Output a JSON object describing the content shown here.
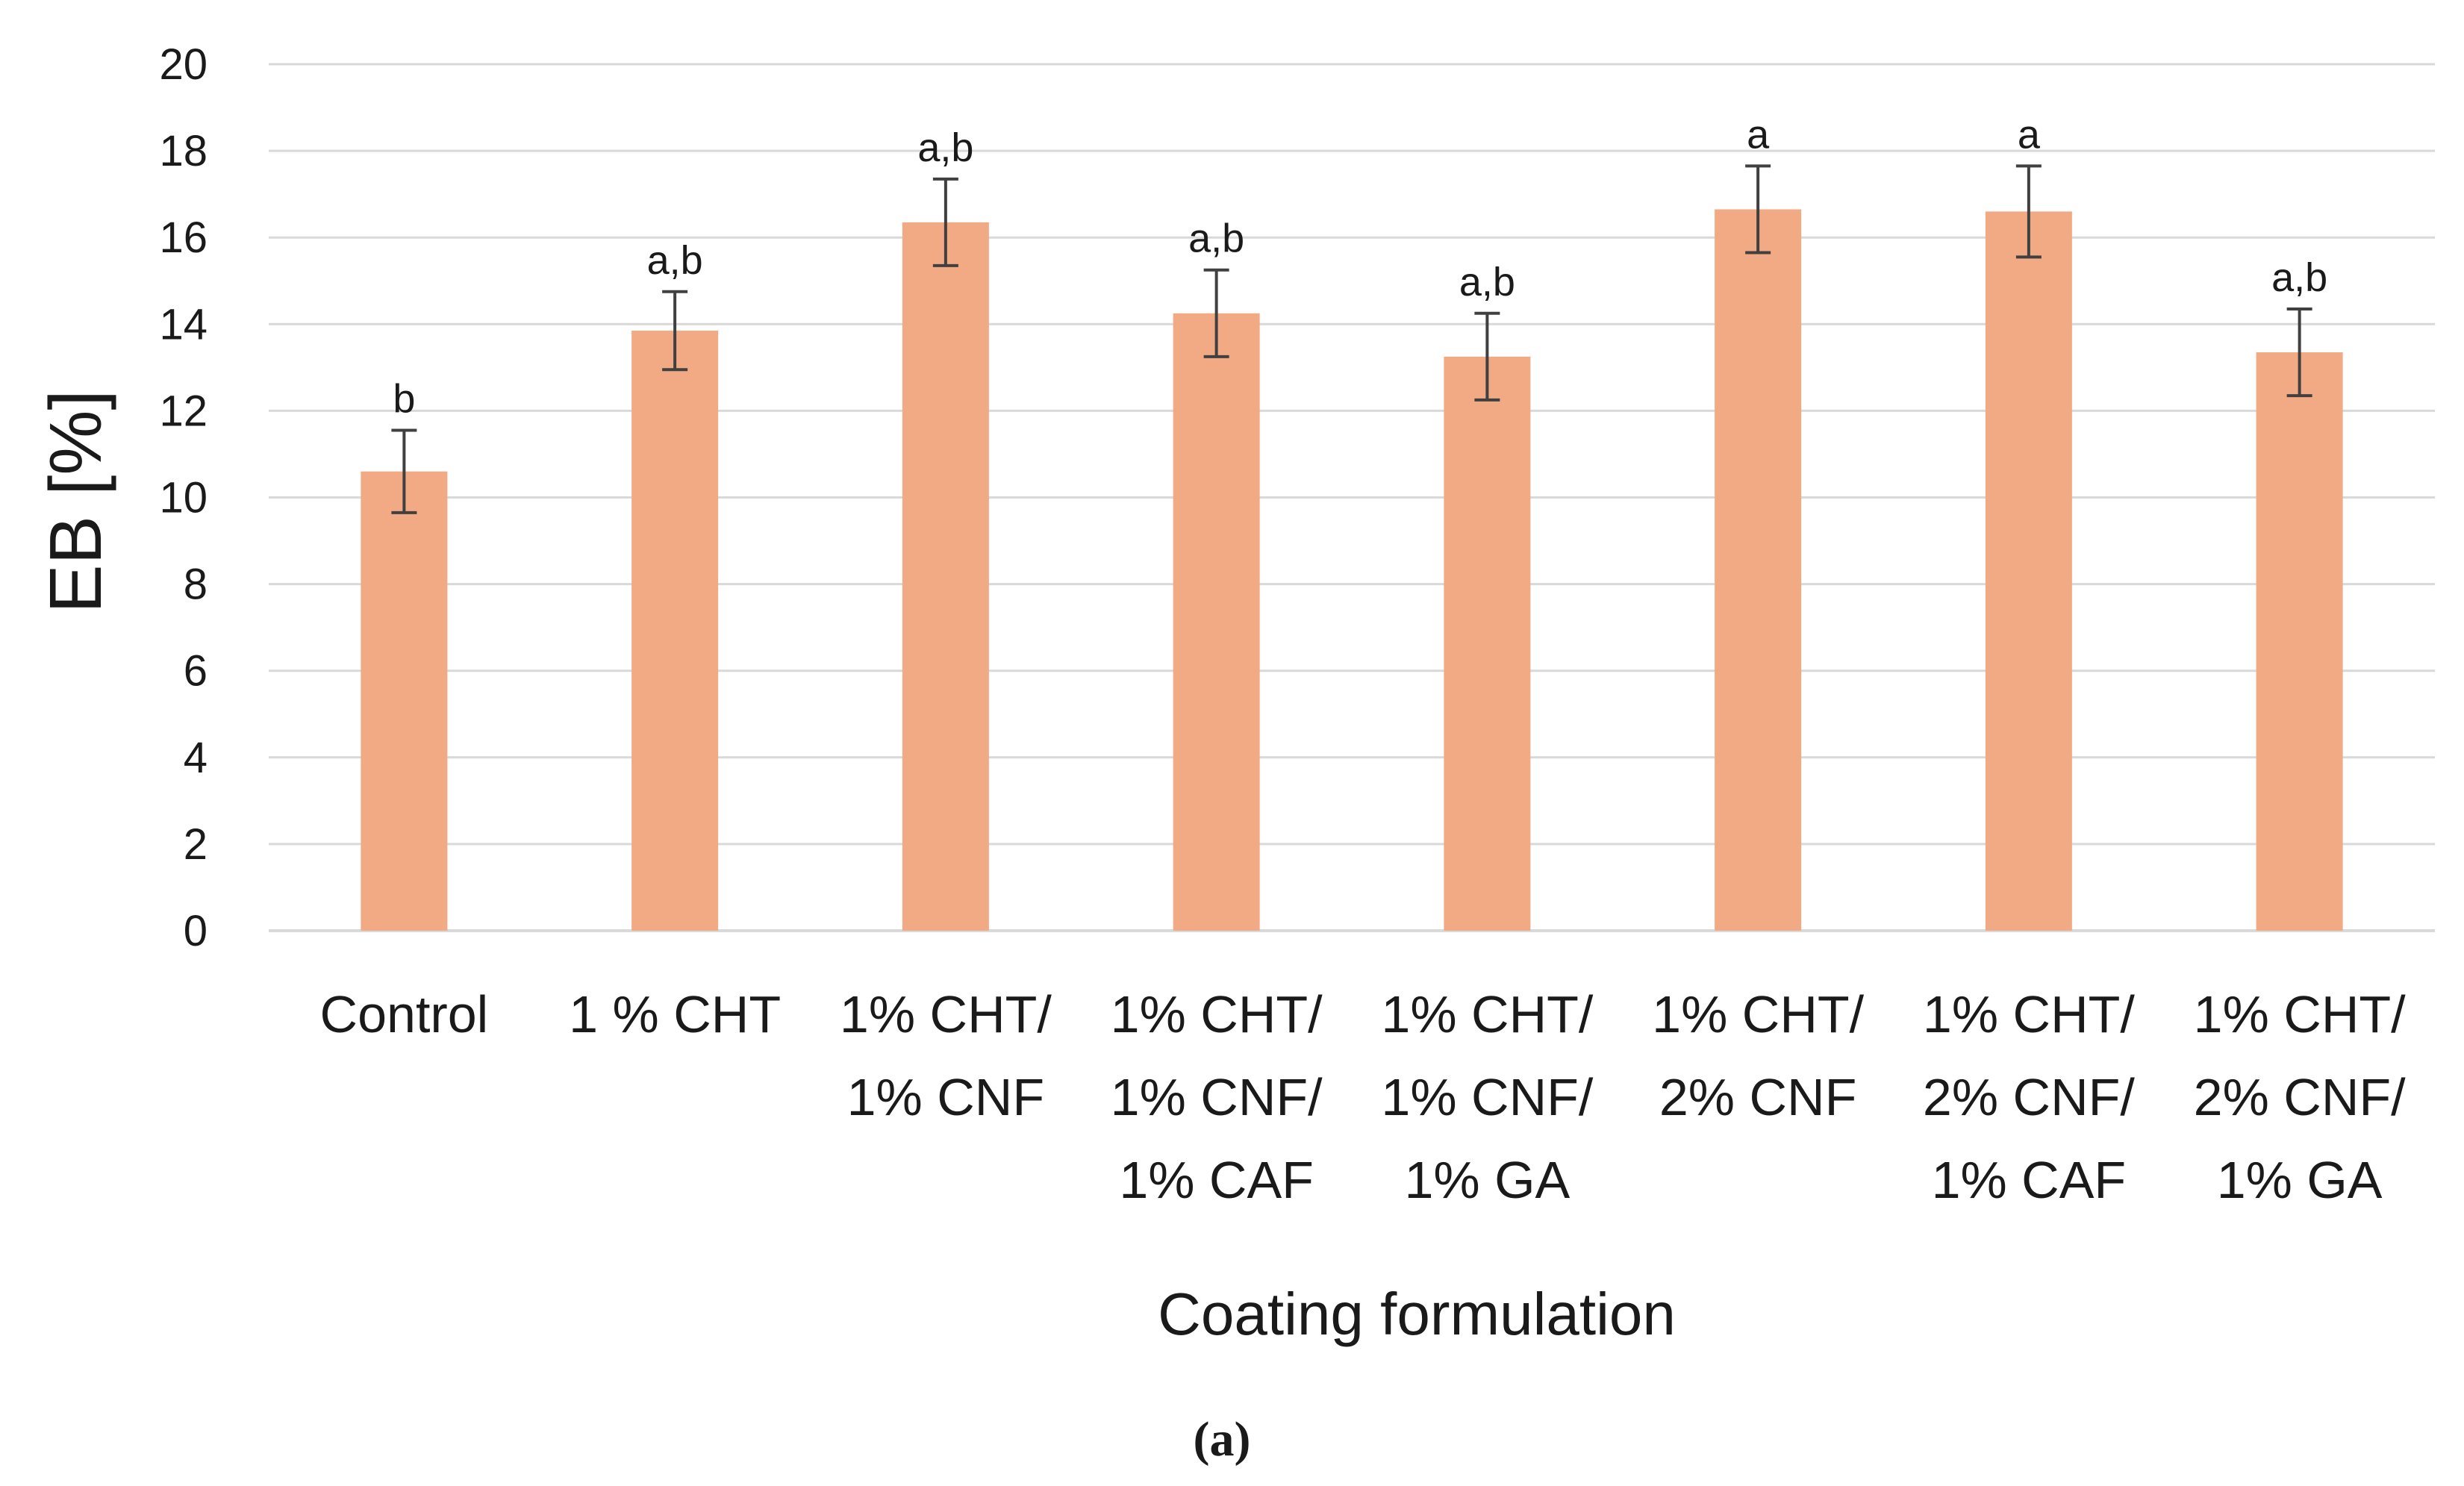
{
  "chart_data": {
    "type": "bar",
    "title": "",
    "ylabel": "EB [%]",
    "xlabel": "Coating formulation",
    "panel_label": "(a)",
    "ylim": [
      0,
      20
    ],
    "yticks": [
      0,
      2,
      4,
      6,
      8,
      10,
      12,
      14,
      16,
      18,
      20
    ],
    "grid": true,
    "bar_color": "#F2AA84",
    "error_color": "#404040",
    "grid_color": "#D9D9D9",
    "categories": [
      [
        "Control"
      ],
      [
        "1 % CHT"
      ],
      [
        "1% CHT/",
        "1% CNF"
      ],
      [
        "1% CHT/",
        "1% CNF/",
        "1% CAF"
      ],
      [
        "1% CHT/",
        "1% CNF/",
        "1% GA"
      ],
      [
        "1% CHT/",
        "2% CNF"
      ],
      [
        "1% CHT/",
        "2% CNF/",
        "1% CAF"
      ],
      [
        "1% CHT/",
        "2% CNF/",
        "1% GA"
      ]
    ],
    "values": [
      10.6,
      13.85,
      16.35,
      14.25,
      13.25,
      16.65,
      16.6,
      13.35
    ],
    "errors": [
      0.95,
      0.9,
      1.0,
      1.0,
      1.0,
      1.0,
      1.05,
      1.0
    ],
    "significance": [
      "b",
      "a,b",
      "a,b",
      "a,b",
      "a,b",
      "a",
      "a",
      "a,b"
    ]
  }
}
